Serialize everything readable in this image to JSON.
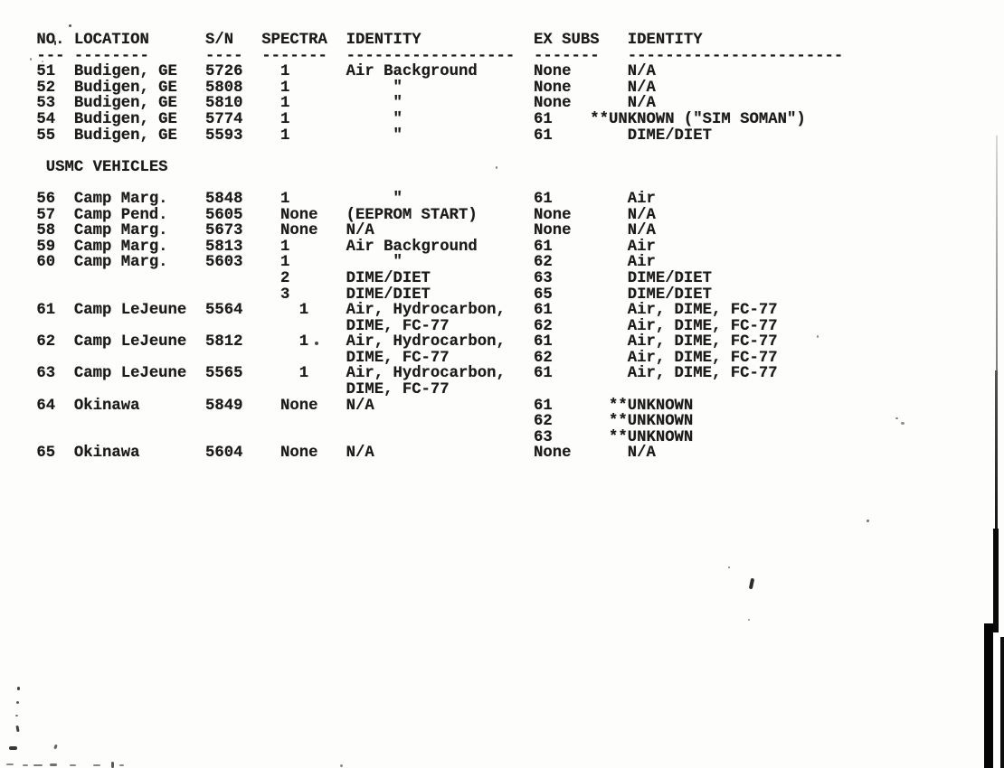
{
  "page": {
    "paper_color": "#fdfdfb",
    "ink_color": "#1c1b19"
  },
  "table": {
    "headers": [
      {
        "label": "NO.",
        "underline": "---"
      },
      {
        "label": "LOCATION",
        "underline": "--------"
      },
      {
        "label": "S/N",
        "underline": "----"
      },
      {
        "label": "SPECTRA",
        "underline": "-------"
      },
      {
        "label": "IDENTITY",
        "underline": "------------------"
      },
      {
        "label": "EX SUBS",
        "underline": "-------"
      },
      {
        "label": "IDENTITY",
        "underline": "-----------------------"
      }
    ],
    "rows": [
      {
        "no": "51",
        "location": "Budigen, GE",
        "sn": "5726",
        "spectra": [
          "1"
        ],
        "identity": [
          "Air Background"
        ],
        "ex_subs": [
          "None"
        ],
        "ex_identity": [
          "N/A"
        ]
      },
      {
        "no": "52",
        "location": "Budigen, GE",
        "sn": "5808",
        "spectra": [
          "1"
        ],
        "identity": [
          "\""
        ],
        "ex_subs": [
          "None"
        ],
        "ex_identity": [
          "N/A"
        ]
      },
      {
        "no": "53",
        "location": "Budigen, GE",
        "sn": "5810",
        "spectra": [
          "1"
        ],
        "identity": [
          "\""
        ],
        "ex_subs": [
          "None"
        ],
        "ex_identity": [
          "N/A"
        ]
      },
      {
        "no": "54",
        "location": "Budigen, GE",
        "sn": "5774",
        "spectra": [
          "1"
        ],
        "identity": [
          "\""
        ],
        "ex_subs": [
          "61"
        ],
        "ex_identity": [
          "**UNKNOWN (\"SIM SOMAN\")"
        ]
      },
      {
        "no": "55",
        "location": "Budigen, GE",
        "sn": "5593",
        "spectra": [
          "1"
        ],
        "identity": [
          "\""
        ],
        "ex_subs": [
          "61"
        ],
        "ex_identity": [
          "DIME/DIET"
        ]
      },
      {
        "section": "USMC VEHICLES"
      },
      {
        "no": "56",
        "location": "Camp Marg.",
        "sn": "5848",
        "spectra": [
          "1"
        ],
        "identity": [
          "\""
        ],
        "ex_subs": [
          "61"
        ],
        "ex_identity": [
          "Air"
        ]
      },
      {
        "no": "57",
        "location": "Camp Pend.",
        "sn": "5605",
        "spectra": [
          "None"
        ],
        "identity": [
          "(EEPROM START)"
        ],
        "ex_subs": [
          "None"
        ],
        "ex_identity": [
          "N/A"
        ]
      },
      {
        "no": "58",
        "location": "Camp Marg.",
        "sn": "5673",
        "spectra": [
          "None"
        ],
        "identity": [
          "N/A"
        ],
        "ex_subs": [
          "None"
        ],
        "ex_identity": [
          "N/A"
        ]
      },
      {
        "no": "59",
        "location": "Camp Marg.",
        "sn": "5813",
        "spectra": [
          "1"
        ],
        "identity": [
          "Air Background"
        ],
        "ex_subs": [
          "61"
        ],
        "ex_identity": [
          "Air"
        ]
      },
      {
        "no": "60",
        "location": "Camp Marg.",
        "sn": "5603",
        "spectra": [
          "1",
          "2",
          "3"
        ],
        "identity": [
          "\"",
          "DIME/DIET",
          "DIME/DIET"
        ],
        "ex_subs": [
          "62",
          "63",
          "65"
        ],
        "ex_identity": [
          "Air",
          "DIME/DIET",
          "DIME/DIET"
        ]
      },
      {
        "no": "61",
        "location": "Camp LeJeune",
        "sn": "5564",
        "spectra": [
          "1"
        ],
        "identity": [
          "Air, Hydrocarbon,",
          "DIME, FC-77"
        ],
        "ex_subs": [
          "61",
          "62"
        ],
        "ex_identity": [
          "Air, DIME, FC-77",
          "Air, DIME, FC-77"
        ]
      },
      {
        "no": "62",
        "location": "Camp LeJeune",
        "sn": "5812",
        "spectra": [
          "1"
        ],
        "identity": [
          "Air, Hydrocarbon,",
          "DIME, FC-77"
        ],
        "ex_subs": [
          "61",
          "62"
        ],
        "ex_identity": [
          "Air, DIME, FC-77",
          "Air, DIME, FC-77"
        ]
      },
      {
        "no": "63",
        "location": "Camp LeJeune",
        "sn": "5565",
        "spectra": [
          "1"
        ],
        "identity": [
          "Air, Hydrocarbon,",
          "DIME, FC-77"
        ],
        "ex_subs": [
          "61"
        ],
        "ex_identity": [
          "Air, DIME, FC-77"
        ]
      },
      {
        "no": "64",
        "location": "Okinawa",
        "sn": "5849",
        "spectra": [
          "None"
        ],
        "identity": [
          "N/A"
        ],
        "ex_subs": [
          "61",
          "62",
          "63"
        ],
        "ex_identity": [
          "**UNKNOWN",
          "**UNKNOWN",
          "**UNKNOWN"
        ]
      },
      {
        "no": "65",
        "location": "Okinawa",
        "sn": "5604",
        "spectra": [
          "None"
        ],
        "identity": [
          "N/A"
        ],
        "ex_subs": [
          "None"
        ],
        "ex_identity": [
          "N/A"
        ]
      }
    ]
  }
}
